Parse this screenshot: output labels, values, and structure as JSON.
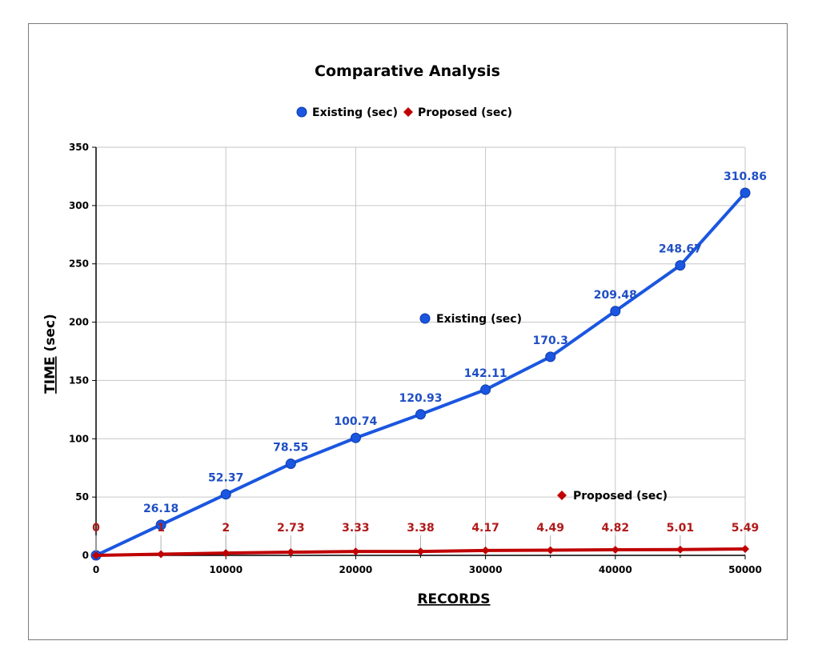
{
  "chart_data": {
    "type": "line",
    "title": "Comparative Analysis",
    "xlabel": "RECORDS",
    "ylabel": "TIME (sec)",
    "ylabel_underlined": "TIME",
    "ylabel_rest": " (sec)",
    "x": [
      0,
      5000,
      10000,
      15000,
      20000,
      25000,
      30000,
      35000,
      40000,
      45000,
      50000
    ],
    "xlim": [
      0,
      50000
    ],
    "ylim": [
      0,
      350
    ],
    "xticks": [
      0,
      10000,
      20000,
      30000,
      40000,
      50000
    ],
    "xtick_labels": [
      "0",
      "10000",
      "20000",
      "30000",
      "40000",
      "50000"
    ],
    "yticks": [
      0,
      50,
      100,
      150,
      200,
      250,
      300,
      350
    ],
    "ytick_labels": [
      "0",
      "50",
      "100",
      "150",
      "200",
      "250",
      "300",
      "350"
    ],
    "grid": true,
    "legend_position": "top-center",
    "series": [
      {
        "name": "Existing (sec)",
        "color": "#1a56e0",
        "marker": "circle",
        "values": [
          0,
          26.18,
          52.37,
          78.55,
          100.74,
          120.93,
          142.11,
          170.3,
          209.48,
          248.67,
          310.86
        ],
        "data_labels": [
          "",
          "26.18",
          "52.37",
          "78.55",
          "100.74",
          "120.93",
          "142.11",
          "170.3",
          "209.48",
          "248.67",
          "310.86"
        ]
      },
      {
        "name": "Proposed (sec)",
        "color": "#c00000",
        "marker": "diamond",
        "values": [
          0,
          1,
          2,
          2.73,
          3.33,
          3.38,
          4.17,
          4.49,
          4.82,
          5.01,
          5.49
        ],
        "data_labels": [
          "0",
          "1",
          "2",
          "2.73",
          "3.33",
          "3.38",
          "4.17",
          "4.49",
          "4.82",
          "5.01",
          "5.49"
        ]
      }
    ],
    "annotations": [
      "Existing (sec)",
      "Proposed (sec)"
    ]
  }
}
